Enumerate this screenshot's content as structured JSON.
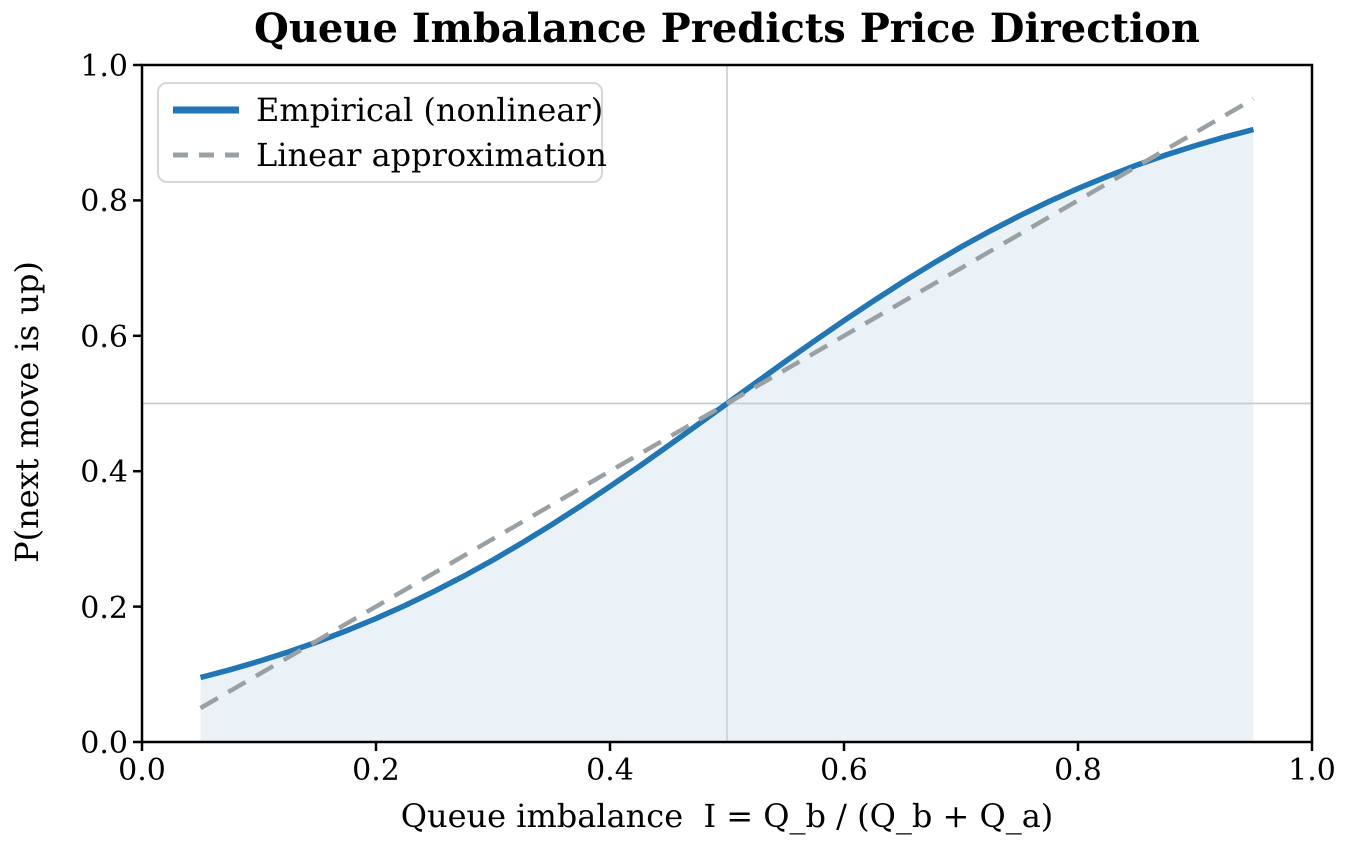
{
  "title": "Queue Imbalance Predicts Price Direction",
  "axes": {
    "xlabel": "Queue imbalance  I = Q_b / (Q_b + Q_a)",
    "ylabel": "P(next move is up)",
    "x_ticks": [
      "0.0",
      "0.2",
      "0.4",
      "0.6",
      "0.8",
      "1.0"
    ],
    "y_ticks": [
      "1.0",
      "0.8",
      "0.6",
      "0.4",
      "0.2",
      "0.0"
    ]
  },
  "legend": {
    "position": "upper left",
    "entries": [
      {
        "label": "Empirical (nonlinear)",
        "style": "solid",
        "color": "#2176b5"
      },
      {
        "label": "Linear approximation",
        "style": "dashed",
        "color": "#9aa1a5"
      }
    ]
  },
  "colors": {
    "empirical_line": "#2176b5",
    "linear_dashed_line": "#9aa1a5",
    "area_fill": "#ebf2f7",
    "vertical_gridline": "#d3d6d8",
    "horizontal_gridline": "#c9cccd",
    "spine": "#000000",
    "background": "#ffffff"
  },
  "chart_data": {
    "type": "line",
    "title": "Queue Imbalance Predicts Price Direction",
    "xlabel": "Queue imbalance  I = Q_b / (Q_b + Q_a)",
    "ylabel": "P(next move is up)",
    "xlim": [
      0.0,
      1.0
    ],
    "ylim": [
      0.0,
      1.0
    ],
    "x_tick_values": [
      0.0,
      0.2,
      0.4,
      0.6,
      0.8,
      1.0
    ],
    "y_tick_values": [
      0.0,
      0.2,
      0.4,
      0.6,
      0.8,
      1.0
    ],
    "grid": "reference lines at x=0.5 and y=0.5 only",
    "reference_lines": {
      "vertical_x": 0.5,
      "horizontal_y": 0.5
    },
    "legend_position": "upper left",
    "series": [
      {
        "name": "Empirical (nonlinear)",
        "style": "solid",
        "color": "#2176b5",
        "linewidth": 5.5,
        "fill_to_zero": true,
        "fill_color": "#ebf2f7",
        "x": [
          0.05,
          0.075,
          0.1,
          0.125,
          0.15,
          0.175,
          0.2,
          0.225,
          0.25,
          0.275,
          0.3,
          0.325,
          0.35,
          0.375,
          0.4,
          0.425,
          0.45,
          0.475,
          0.5,
          0.525,
          0.55,
          0.575,
          0.6,
          0.625,
          0.65,
          0.675,
          0.7,
          0.725,
          0.75,
          0.775,
          0.8,
          0.825,
          0.85,
          0.875,
          0.9,
          0.925,
          0.95
        ],
        "y": [
          0.0953,
          0.1067,
          0.1192,
          0.133,
          0.148,
          0.1645,
          0.1824,
          0.2018,
          0.2227,
          0.2451,
          0.2689,
          0.2942,
          0.3208,
          0.3487,
          0.3775,
          0.4073,
          0.4378,
          0.4688,
          0.5,
          0.5312,
          0.5622,
          0.5927,
          0.6225,
          0.6513,
          0.6792,
          0.7058,
          0.7311,
          0.7549,
          0.7773,
          0.7982,
          0.8176,
          0.8355,
          0.852,
          0.867,
          0.8808,
          0.8933,
          0.9047
        ]
      },
      {
        "name": "Linear approximation",
        "style": "dashed",
        "color": "#9aa1a5",
        "linewidth": 4.5,
        "x": [
          0.05,
          0.95
        ],
        "y": [
          0.05,
          0.95
        ]
      }
    ]
  }
}
